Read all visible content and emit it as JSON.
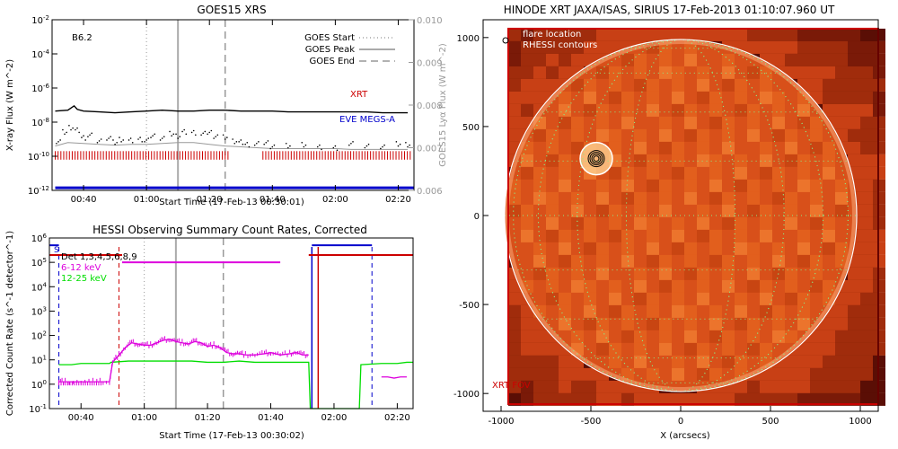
{
  "colors": {
    "xrt": "#cc0000",
    "eve": "#0000cc",
    "band_6_12": "#dd00dd",
    "band_12_25": "#00dd00",
    "black": "#000000",
    "grey": "#999999",
    "sun_dark": "#5a0e05",
    "sun_mid": "#d8501a",
    "sun_bright": "#f07a30",
    "grid": "#88ee88"
  },
  "chart_data": [
    {
      "type": "line",
      "title": "GOES15 XRS",
      "xlabel": "Start Time (17-Feb-13 00:30:01)",
      "ylabel": "X-ray Flux (W m^-2)",
      "y2label": "GOES15 Lyα Flux (W m^-2)",
      "class_label": "B6.2",
      "x_ticks": [
        "00:40",
        "01:00",
        "01:20",
        "01:40",
        "02:00",
        "02:20"
      ],
      "x_tick_minutes": [
        40,
        60,
        80,
        100,
        120,
        140
      ],
      "xlim_minutes": [
        30,
        145
      ],
      "y_ticks": [
        "10^-2",
        "10^-4",
        "10^-6",
        "10^-8",
        "10^-10",
        "10^-12"
      ],
      "y_tick_exp": [
        -2,
        -4,
        -6,
        -8,
        -10,
        -12
      ],
      "ylim_exp": [
        -12,
        -2
      ],
      "y2_ticks": [
        "0.010",
        "0.009",
        "0.008",
        "0.007",
        "0.006"
      ],
      "y2_tick_values": [
        0.01,
        0.009,
        0.008,
        0.007,
        0.006
      ],
      "y2lim": [
        0.006,
        0.01
      ],
      "legend": {
        "placement": "top-right",
        "entries": [
          "GOES Start",
          "GOES Peak",
          "GOES End"
        ]
      },
      "markers": {
        "start_min": 60,
        "peak_min": 70,
        "end_min": 85
      },
      "annotations": {
        "xrt_label": "XRT",
        "eve_label": "EVE MEGS-A"
      },
      "series": [
        {
          "key": "long",
          "x": [
            31,
            35,
            37,
            38,
            40,
            45,
            50,
            55,
            60,
            65,
            70,
            75,
            80,
            85,
            90,
            95,
            100,
            105,
            110,
            115,
            120,
            125,
            130,
            135,
            140,
            143
          ],
          "log_y": [
            -7.35,
            -7.3,
            -7.05,
            -7.25,
            -7.35,
            -7.4,
            -7.45,
            -7.4,
            -7.35,
            -7.3,
            -7.35,
            -7.35,
            -7.3,
            -7.3,
            -7.35,
            -7.35,
            -7.35,
            -7.4,
            -7.4,
            -7.4,
            -7.4,
            -7.4,
            -7.4,
            -7.45,
            -7.45,
            -7.45
          ]
        },
        {
          "key": "short",
          "x": [
            31,
            35,
            40,
            45,
            50,
            55,
            60,
            65,
            70,
            75,
            80,
            85,
            90,
            95,
            100,
            105,
            110,
            115,
            120,
            125,
            130,
            135,
            140,
            143
          ],
          "log_y": [
            -9.4,
            -9.2,
            -9.25,
            -9.3,
            -9.35,
            -9.3,
            -9.3,
            -9.25,
            -9.2,
            -9.2,
            -9.3,
            -9.4,
            -9.45,
            -9.5,
            -9.55,
            -9.55,
            -9.55,
            -9.55,
            -9.55,
            -9.6,
            -9.6,
            -9.6,
            -9.6,
            -9.6
          ]
        },
        {
          "key": "lya",
          "x": [
            32,
            34,
            36,
            38,
            40,
            42,
            45,
            48,
            50,
            52,
            55,
            58,
            60,
            62,
            65,
            68,
            70,
            72,
            75,
            78,
            80,
            82,
            85,
            88,
            90,
            92,
            95,
            98,
            100,
            105,
            110,
            115,
            120,
            125,
            130,
            135,
            140,
            143
          ],
          "log_y": [
            -9.1,
            -8.6,
            -8.3,
            -8.5,
            -8.9,
            -8.8,
            -9.1,
            -8.9,
            -9.2,
            -9.0,
            -9.1,
            -9.0,
            -9.1,
            -8.8,
            -8.9,
            -8.7,
            -8.8,
            -8.6,
            -8.6,
            -8.7,
            -8.6,
            -8.8,
            -8.9,
            -9.1,
            -9.2,
            -9.3,
            -9.3,
            -9.2,
            -9.4,
            -9.4,
            -9.3,
            -9.5,
            -9.5,
            -9.3,
            -9.4,
            -9.4,
            -9.3,
            -9.3
          ]
        }
      ],
      "xrt_coverage_min": [
        [
          31,
          86
        ],
        [
          97,
          144
        ]
      ],
      "eve_coverage_min": [
        [
          31,
          145
        ]
      ]
    },
    {
      "type": "line",
      "title": "HESSI Observing Summary Count Rates, Corrected",
      "xlabel": "Start Time (17-Feb-13 00:30:02)",
      "ylabel": "Corrected Count Rate (s^-1 detector^-1)",
      "x_ticks": [
        "00:40",
        "01:00",
        "01:20",
        "01:40",
        "02:00",
        "02:20"
      ],
      "x_tick_minutes": [
        40,
        60,
        80,
        100,
        120,
        140
      ],
      "xlim_minutes": [
        30,
        145
      ],
      "y_ticks": [
        "10^6",
        "10^5",
        "10^4",
        "10^3",
        "10^2",
        "10^1",
        "10^0",
        "10^-1"
      ],
      "y_tick_exp": [
        6,
        5,
        4,
        3,
        2,
        1,
        0,
        -1
      ],
      "ylim_exp": [
        -1,
        6
      ],
      "legend": {
        "placement": "top-left",
        "entries": [
          "Det 1,3,4,5,6,8,9",
          "6-12 keV",
          "12-25 keV"
        ]
      },
      "markers": {
        "start_min": 60,
        "peak_min": 70,
        "end_min": 85
      },
      "status_label": "S",
      "series": [
        {
          "key": "hi",
          "x": [
            33,
            35,
            37,
            40,
            45,
            49,
            49.5,
            55,
            60,
            65,
            70,
            75,
            80,
            85,
            90,
            95,
            100,
            105,
            108,
            110,
            112,
            112.5,
            128,
            128.5,
            135,
            140,
            143,
            145
          ],
          "log_y": [
            0.8,
            0.8,
            0.8,
            0.85,
            0.85,
            0.85,
            0.9,
            0.95,
            0.95,
            0.95,
            0.95,
            0.95,
            0.9,
            0.9,
            0.95,
            0.9,
            0.9,
            0.9,
            0.9,
            0.9,
            0.9,
            -1,
            -1,
            0.8,
            0.85,
            0.85,
            0.9,
            0.9
          ]
        },
        {
          "key": "lo",
          "x": [
            33,
            35,
            40,
            45,
            49,
            50,
            52,
            54,
            56,
            58,
            60,
            62,
            64,
            66,
            68,
            70,
            72,
            74,
            76,
            78,
            80,
            82,
            84,
            86,
            88,
            90,
            92,
            95,
            98,
            100,
            103,
            106,
            108,
            110,
            112
          ],
          "log_y": [
            0.1,
            0.1,
            0.1,
            0.1,
            0.1,
            0.9,
            1.2,
            1.5,
            1.7,
            1.65,
            1.6,
            1.6,
            1.7,
            1.8,
            1.85,
            1.75,
            1.7,
            1.65,
            1.75,
            1.7,
            1.55,
            1.6,
            1.5,
            1.3,
            1.25,
            1.25,
            1.2,
            1.2,
            1.25,
            1.3,
            1.2,
            1.25,
            1.3,
            1.2,
            1.2
          ]
        },
        {
          "key": "lo_tail",
          "x": [
            135,
            137,
            139,
            141,
            143
          ],
          "log_y": [
            0.3,
            0.3,
            0.25,
            0.3,
            0.3
          ]
        }
      ],
      "attenuator_min": [
        [
          30,
          53
        ],
        [
          112,
          145
        ]
      ],
      "bars_min": [
        [
          53,
          103
        ]
      ],
      "saa_dash_min": [
        33,
        52,
        132
      ],
      "saa_solid_min": [
        113,
        115
      ]
    },
    {
      "type": "heatmap",
      "title": "HINODE XRT JAXA/ISAS, SIRIUS 17-Feb-2013 01:10:07.960 UT",
      "xlabel": "X (arcsecs)",
      "ylabel": "",
      "x_ticks": [
        "-1000",
        "-500",
        "0",
        "500",
        "1000"
      ],
      "x_tick_values": [
        -1000,
        -500,
        0,
        500,
        1000
      ],
      "y_ticks": [
        "1000",
        "500",
        "0",
        "-500",
        "-1000"
      ],
      "y_tick_values": [
        1000,
        500,
        0,
        -500,
        -1000
      ],
      "xlim": [
        -1100,
        1100
      ],
      "ylim": [
        -1100,
        1100
      ],
      "limb_radius_arcsec": 980,
      "flare_location": [
        -470,
        320
      ],
      "legend": {
        "placement": "top-left",
        "entries": [
          "flare location",
          "RHESSI contours"
        ]
      },
      "fov_label": "XRT FOV",
      "fov": [
        -960,
        -1060,
        1100,
        1050
      ],
      "grid": "on"
    }
  ]
}
